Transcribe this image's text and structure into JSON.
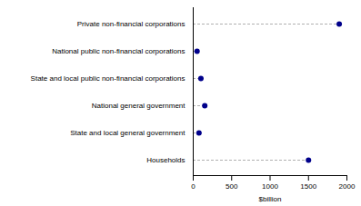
{
  "chart_data": {
    "type": "lollipop",
    "orientation": "horizontal",
    "categories": [
      "Households",
      "State and local general government",
      "National general government",
      "State and local public non-financial corporations",
      "National public non-financial corporations",
      "Private non-financial corporations"
    ],
    "values": [
      1500,
      75,
      150,
      100,
      50,
      1900
    ],
    "color": "#00008B",
    "line_style": "dashed",
    "xlabel": "$billion",
    "xlim": [
      0,
      2000
    ],
    "xticks": [
      0,
      500,
      1000,
      1500,
      2000
    ],
    "grid": false
  }
}
